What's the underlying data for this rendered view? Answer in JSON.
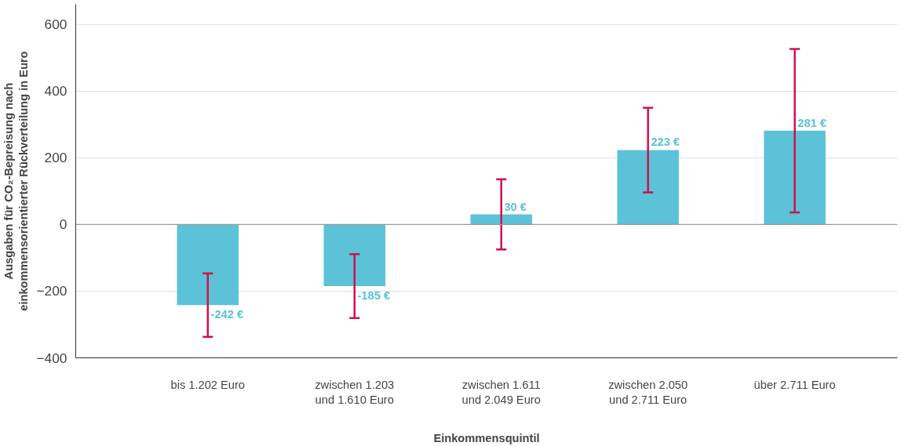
{
  "chart_data": {
    "type": "bar",
    "xlabel": "Einkommensquintil",
    "ylabel": "Ausgaben für CO₂-Bepreisung nach\neinkommensorientierter Rückverteilung in Euro",
    "categories": [
      "bis 1.202 Euro",
      "zwischen 1.203\nund 1.610 Euro",
      "zwischen 1.611\nund 2.049 Euro",
      "zwischen 2.050\nund 2.711 Euro",
      "über 2.711 Euro"
    ],
    "series": [
      {
        "color": "#5bc2d8",
        "values": [
          -242,
          -185,
          30,
          223,
          281
        ],
        "errors": [
          95,
          96,
          105,
          127,
          245
        ],
        "value_labels": [
          "-242 €",
          "-185 €",
          "30 €",
          "223 €",
          "281 €"
        ]
      }
    ],
    "ylim": [
      -400,
      660
    ],
    "yticks": [
      -400,
      -200,
      0,
      200,
      400,
      600
    ],
    "ref_lines": [
      {
        "axis": "y",
        "value": 0,
        "color": "#999999"
      }
    ],
    "grid": "y"
  }
}
